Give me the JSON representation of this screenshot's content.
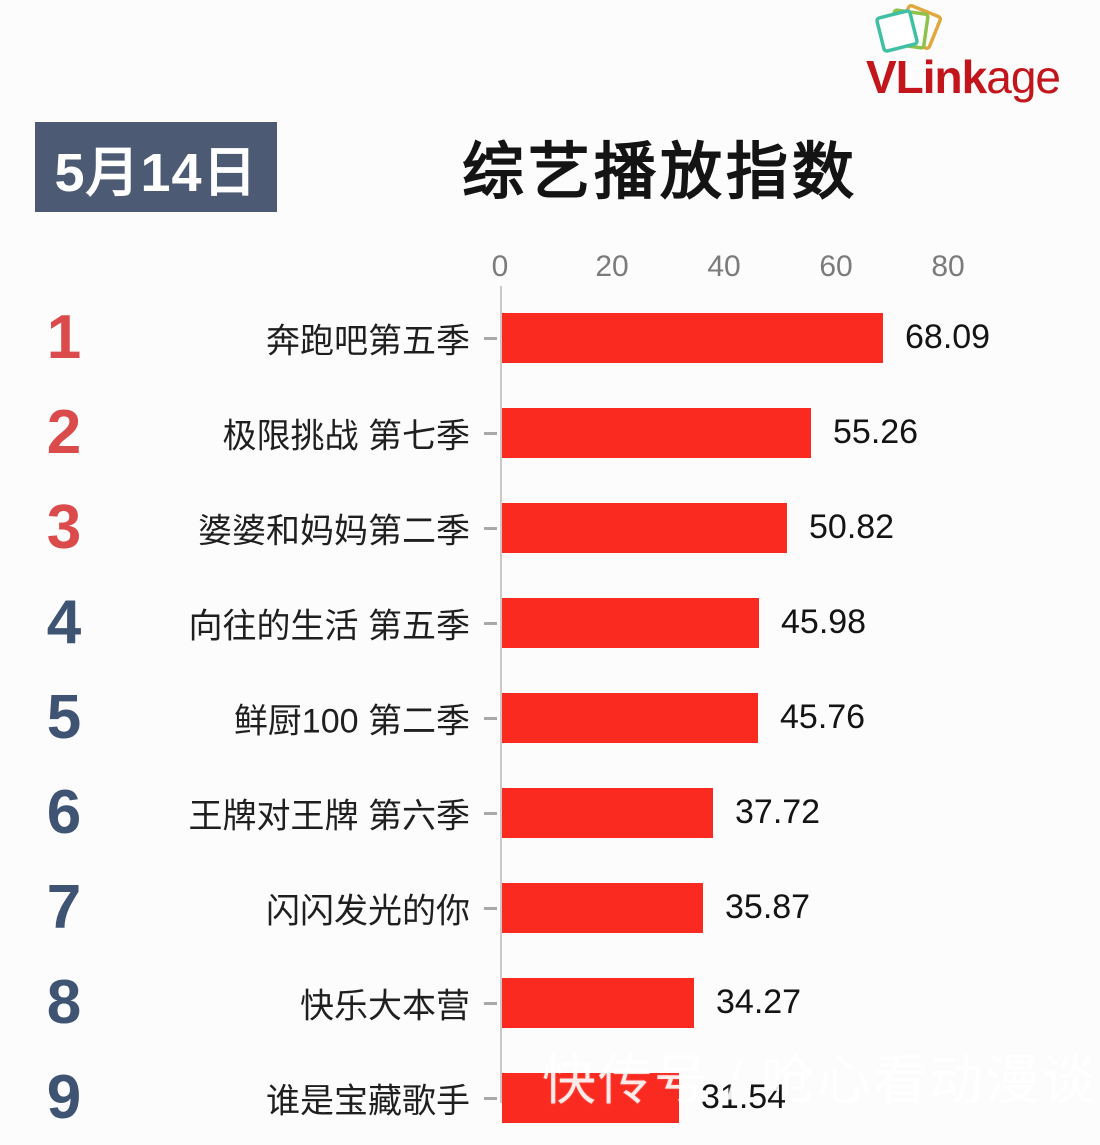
{
  "logo": {
    "brand_bold": "VLink",
    "brand_light": "age",
    "icon": "stacked-sheets-icon",
    "brand_color": "#c2151c"
  },
  "header": {
    "date_badge": "5月14日",
    "title": "综艺播放指数"
  },
  "watermark": "快传号 / 呛心看动漫谈",
  "chart_data": {
    "type": "bar",
    "orientation": "horizontal",
    "title": "综艺播放指数",
    "date": "5月14日",
    "xlim": [
      0,
      80
    ],
    "x_ticks": [
      "0",
      "20",
      "40",
      "60",
      "80"
    ],
    "grid": false,
    "bar_color": "#fa2a20",
    "rank_color_top3": "#db4b4b",
    "rank_color_rest": "#3f5473",
    "categories": [
      "奔跑吧第五季",
      "极限挑战 第七季",
      "婆婆和妈妈第二季",
      "向往的生活 第五季",
      "鲜厨100 第二季",
      "王牌对王牌 第六季",
      "闪闪发光的你",
      "快乐大本营",
      "谁是宝藏歌手"
    ],
    "items": [
      {
        "rank": "1",
        "label": "奔跑吧第五季",
        "value": 68.09,
        "value_text": "68.09"
      },
      {
        "rank": "2",
        "label": "极限挑战 第七季",
        "value": 55.26,
        "value_text": "55.26"
      },
      {
        "rank": "3",
        "label": "婆婆和妈妈第二季",
        "value": 50.82,
        "value_text": "50.82"
      },
      {
        "rank": "4",
        "label": "向往的生活 第五季",
        "value": 45.98,
        "value_text": "45.98"
      },
      {
        "rank": "5",
        "label": "鲜厨100 第二季",
        "value": 45.76,
        "value_text": "45.76"
      },
      {
        "rank": "6",
        "label": "王牌对王牌 第六季",
        "value": 37.72,
        "value_text": "37.72"
      },
      {
        "rank": "7",
        "label": "闪闪发光的你",
        "value": 35.87,
        "value_text": "35.87"
      },
      {
        "rank": "8",
        "label": "快乐大本营",
        "value": 34.27,
        "value_text": "34.27"
      },
      {
        "rank": "9",
        "label": "谁是宝藏歌手",
        "value": 31.54,
        "value_text": "31.54"
      }
    ]
  }
}
